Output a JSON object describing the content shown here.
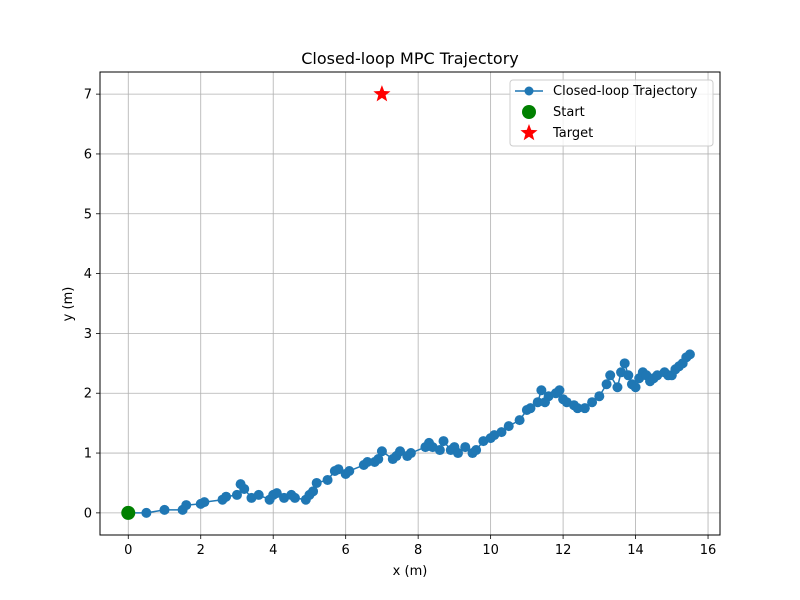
{
  "chart_data": {
    "type": "line",
    "title": "Closed-loop MPC Trajectory",
    "xlabel": "x (m)",
    "ylabel": "y (m)",
    "xlim": [
      -0.78,
      16.33
    ],
    "ylim": [
      -0.37,
      7.37
    ],
    "xticks": [
      0,
      2,
      4,
      6,
      8,
      10,
      12,
      14,
      16
    ],
    "yticks": [
      0,
      1,
      2,
      3,
      4,
      5,
      6,
      7
    ],
    "grid": true,
    "legend_position": "top-right",
    "series": [
      {
        "name": "Closed-loop Trajectory",
        "color": "#1f77b4",
        "marker": "circle",
        "x": [
          0,
          0.5,
          1.0,
          1.5,
          1.6,
          2.0,
          2.1,
          2.6,
          2.7,
          3.0,
          3.2,
          3.1,
          3.4,
          3.6,
          3.9,
          4.0,
          4.1,
          4.3,
          4.5,
          4.6,
          4.9,
          5.0,
          5.1,
          5.2,
          5.5,
          5.7,
          5.8,
          6.0,
          6.1,
          6.5,
          6.6,
          6.8,
          6.9,
          7.0,
          7.3,
          7.4,
          7.5,
          7.7,
          7.8,
          8.2,
          8.3,
          8.4,
          8.6,
          8.7,
          8.9,
          9.0,
          9.1,
          9.3,
          9.5,
          9.6,
          9.8,
          10.0,
          10.1,
          10.3,
          10.5,
          10.8,
          11.0,
          11.1,
          11.3,
          11.4,
          11.6,
          11.5,
          11.8,
          11.9,
          12.0,
          12.1,
          12.3,
          12.4,
          12.6,
          12.8,
          13.0,
          13.2,
          13.3,
          13.5,
          13.6,
          13.7,
          13.8,
          13.9,
          14.0,
          14.1,
          14.2,
          14.3,
          14.4,
          14.5,
          14.6,
          14.8,
          14.9,
          15.0,
          15.1,
          15.2,
          15.3,
          15.4,
          15.5
        ],
        "y": [
          0,
          0,
          0.05,
          0.05,
          0.13,
          0.15,
          0.18,
          0.22,
          0.27,
          0.3,
          0.4,
          0.48,
          0.25,
          0.3,
          0.22,
          0.3,
          0.33,
          0.25,
          0.3,
          0.25,
          0.22,
          0.3,
          0.36,
          0.5,
          0.55,
          0.7,
          0.73,
          0.65,
          0.7,
          0.8,
          0.85,
          0.85,
          0.9,
          1.03,
          0.9,
          0.95,
          1.03,
          0.95,
          1.0,
          1.1,
          1.17,
          1.1,
          1.05,
          1.2,
          1.05,
          1.1,
          1.0,
          1.1,
          1.0,
          1.05,
          1.2,
          1.25,
          1.3,
          1.35,
          1.45,
          1.55,
          1.72,
          1.75,
          1.85,
          2.05,
          1.95,
          1.85,
          2.0,
          2.05,
          1.9,
          1.85,
          1.8,
          1.75,
          1.75,
          1.85,
          1.95,
          2.15,
          2.3,
          2.1,
          2.35,
          2.5,
          2.3,
          2.15,
          2.1,
          2.25,
          2.35,
          2.3,
          2.2,
          2.25,
          2.3,
          2.35,
          2.3,
          2.3,
          2.4,
          2.45,
          2.5,
          2.6,
          2.65
        ]
      },
      {
        "name": "Start",
        "color": "#008000",
        "marker": "circle",
        "x": [
          0
        ],
        "y": [
          0
        ]
      },
      {
        "name": "Target",
        "color": "#ff0000",
        "marker": "star",
        "x": [
          7
        ],
        "y": [
          7
        ]
      }
    ]
  }
}
